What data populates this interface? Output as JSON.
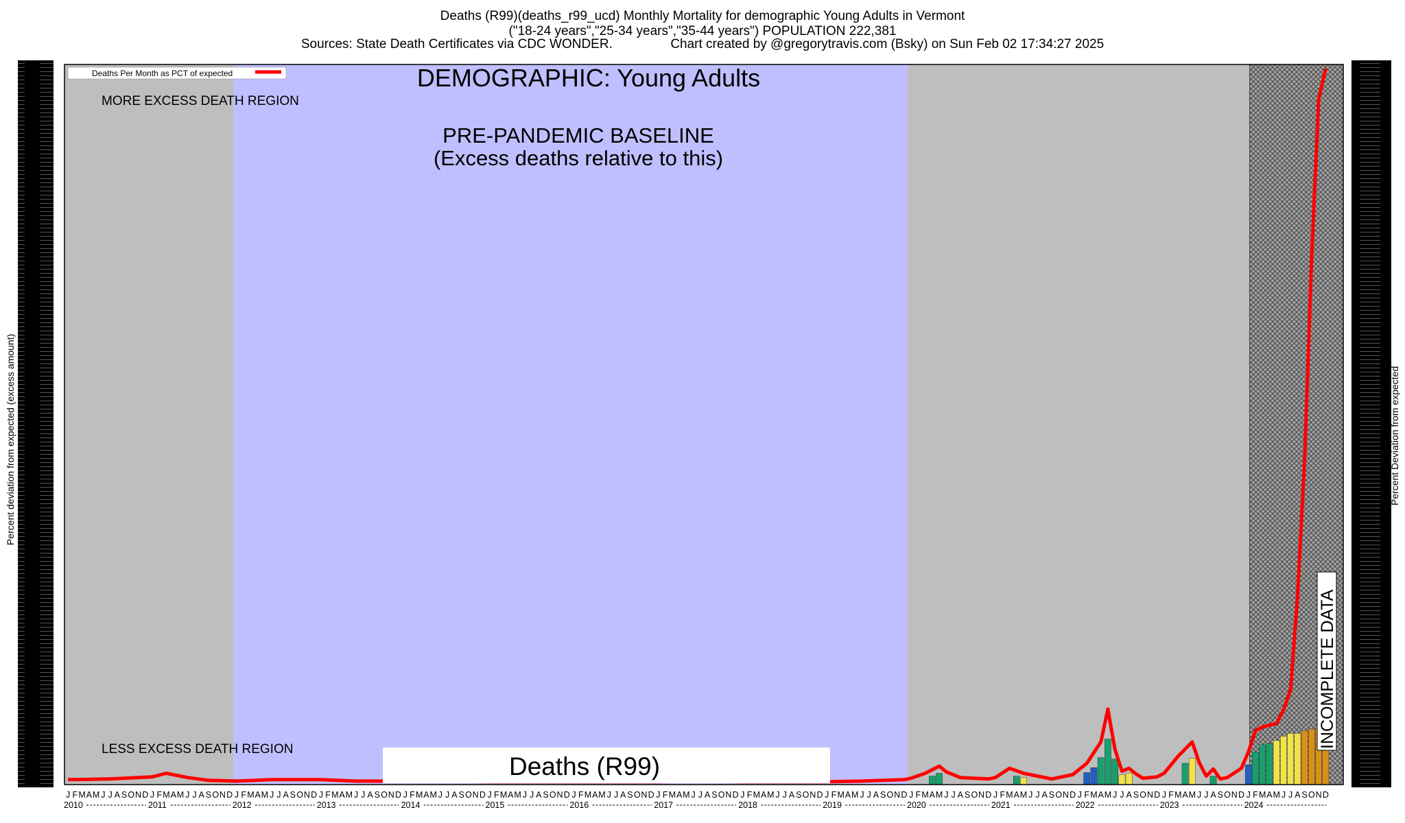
{
  "header": {
    "line1": "Deaths (R99)(deaths_r99_ucd) Monthly Mortality for demographic Young Adults in Vermont",
    "line2": "(\"18-24 years\",\"25-34 years\",\"35-44 years\") POPULATION 222,381",
    "line3": "Sources: State Death Certificates via CDC WONDER.                Chart created by @gregorytravis.com (Bsky) on Sun Feb 02 17:34:27 2025"
  },
  "colors": {
    "background": "#ffffff",
    "plot_grey": "#bebebe",
    "baseline_region": "#bfbfff",
    "deviation_line": "#ff0000",
    "bar_blue": "#1f5fbf",
    "bar_green": "#1a9e6e",
    "bar_yellow": "#f2e24a",
    "bar_orange": "#d9901a",
    "incomplete_hatch": "#a0a0a0"
  },
  "chart_data": {
    "type": "line",
    "title": "DEMOGRAPHIC: Young Adults",
    "bottom_label": "Deaths (R99)",
    "legend": {
      "label": "Deaths Per Month as PCT of expected",
      "position": "top-left"
    },
    "ylabel_left": "Percent deviation from expected (excess amount)",
    "ylabel_right": "Percent Deviation from expected",
    "annotations": {
      "more_excess": "MORE EXCESS DEATH REGION",
      "less_excess": "LESS EXCESS DEATH REGION",
      "baseline_line1": "PRE-PANDEMIC BASELINE",
      "baseline_line2": "(Excess deaths relative to this)",
      "incomplete": "INCOMPLETE DATA"
    },
    "x_start": "2010-01",
    "x_end": "2025-03",
    "month_letters": [
      "J",
      "F",
      "M",
      "A",
      "M",
      "J",
      "J",
      "A",
      "S",
      "O",
      "N",
      "D"
    ],
    "year_labels": [
      "2010",
      "2011",
      "2012",
      "2013",
      "2014",
      "2015",
      "2016",
      "2017",
      "2018",
      "2019",
      "2020",
      "2021",
      "2022",
      "2023",
      "2024"
    ],
    "baseline_period": [
      "2012-01",
      "2019-12"
    ],
    "incomplete_from": "2024-07",
    "ylim": [
      0,
      100
    ],
    "y_ticks_legible": false,
    "grid": false,
    "series": [
      {
        "name": "Deaths Per Month as PCT of expected",
        "color": "#ff0000",
        "points": [
          [
            "2010-01",
            0.5
          ],
          [
            "2010-07",
            0.6
          ],
          [
            "2011-01",
            0.9
          ],
          [
            "2011-03",
            1.4
          ],
          [
            "2011-06",
            0.8
          ],
          [
            "2011-09",
            0.4
          ],
          [
            "2012-01",
            0.3
          ],
          [
            "2012-06",
            0.5
          ],
          [
            "2013-01",
            0.5
          ],
          [
            "2013-06",
            0.3
          ],
          [
            "2014-01",
            0.3
          ],
          [
            "2014-06",
            0.3
          ],
          [
            "2015-01",
            0.2
          ],
          [
            "2015-06",
            0.2
          ],
          [
            "2016-01",
            0.2
          ],
          [
            "2016-06",
            0.2
          ],
          [
            "2017-01",
            0.2
          ],
          [
            "2017-06",
            0.3
          ],
          [
            "2018-01",
            0.2
          ],
          [
            "2018-06",
            0.2
          ],
          [
            "2019-01",
            0.2
          ],
          [
            "2019-06",
            0.3
          ],
          [
            "2019-12",
            0.5
          ],
          [
            "2020-01",
            0.7
          ],
          [
            "2020-03",
            1.4
          ],
          [
            "2020-05",
            2.4
          ],
          [
            "2020-06",
            1.6
          ],
          [
            "2020-08",
            0.8
          ],
          [
            "2020-12",
            0.6
          ],
          [
            "2021-01",
            0.8
          ],
          [
            "2021-03",
            2.1
          ],
          [
            "2021-05",
            1.4
          ],
          [
            "2021-06",
            1.2
          ],
          [
            "2021-09",
            0.6
          ],
          [
            "2021-12",
            1.2
          ],
          [
            "2022-02",
            2.8
          ],
          [
            "2022-04",
            5.8
          ],
          [
            "2022-05",
            10.4
          ],
          [
            "2022-06",
            4.8
          ],
          [
            "2022-07",
            1.7
          ],
          [
            "2022-08",
            2.1
          ],
          [
            "2022-09",
            1.3
          ],
          [
            "2022-10",
            0.7
          ],
          [
            "2022-12",
            0.9
          ],
          [
            "2023-01",
            1.4
          ],
          [
            "2023-03",
            3.8
          ],
          [
            "2023-05",
            5.8
          ],
          [
            "2023-06",
            2.9
          ],
          [
            "2023-07",
            1.0
          ],
          [
            "2023-08",
            2.0
          ],
          [
            "2023-09",
            0.6
          ],
          [
            "2023-10",
            0.8
          ],
          [
            "2023-12",
            2.1
          ],
          [
            "2024-01",
            4.4
          ],
          [
            "2024-02",
            7.4
          ],
          [
            "2024-03",
            7.9
          ],
          [
            "2024-05",
            8.4
          ],
          [
            "2024-06",
            10.3
          ],
          [
            "2024-07",
            13.1
          ],
          [
            "2024-08",
            26.3
          ],
          [
            "2024-09",
            45.5
          ],
          [
            "2024-10",
            73.8
          ],
          [
            "2024-11",
            96.1
          ],
          [
            "2024-12",
            100.4
          ]
        ]
      }
    ],
    "bars": [
      {
        "x": "2020-04",
        "value": 1.0,
        "color": "green"
      },
      {
        "x": "2020-05",
        "value": 1.4,
        "color": "green"
      },
      {
        "x": "2021-04",
        "value": 1.0,
        "color": "green"
      },
      {
        "x": "2021-05",
        "value": 0.8,
        "color": "yellow"
      },
      {
        "x": "2022-02",
        "value": 1.5,
        "color": "blue"
      },
      {
        "x": "2022-03",
        "value": 2.2,
        "color": "blue"
      },
      {
        "x": "2022-04",
        "value": 3.6,
        "color": "green"
      },
      {
        "x": "2022-05",
        "value": 6.2,
        "color": "green"
      },
      {
        "x": "2022-06",
        "value": 3.4,
        "color": "green"
      },
      {
        "x": "2022-07",
        "value": 1.2,
        "color": "yellow"
      },
      {
        "x": "2022-08",
        "value": 1.4,
        "color": "yellow"
      },
      {
        "x": "2023-04",
        "value": 2.8,
        "color": "green"
      },
      {
        "x": "2023-05",
        "value": 3.5,
        "color": "yellow"
      },
      {
        "x": "2023-08",
        "value": 1.0,
        "color": "green"
      },
      {
        "x": "2024-01",
        "value": 2.6,
        "color": "blue"
      },
      {
        "x": "2024-02",
        "value": 4.4,
        "color": "green"
      },
      {
        "x": "2024-03",
        "value": 5.4,
        "color": "green"
      },
      {
        "x": "2024-04",
        "value": 5.6,
        "color": "green"
      },
      {
        "x": "2024-05",
        "value": 6.0,
        "color": "yellow"
      },
      {
        "x": "2024-06",
        "value": 6.6,
        "color": "yellow"
      },
      {
        "x": "2024-07",
        "value": 7.0,
        "color": "yellow"
      },
      {
        "x": "2024-08",
        "value": 7.0,
        "color": "yellow"
      },
      {
        "x": "2024-09",
        "value": 7.4,
        "color": "orange"
      },
      {
        "x": "2024-10",
        "value": 7.6,
        "color": "orange"
      },
      {
        "x": "2024-11",
        "value": 7.8,
        "color": "orange"
      },
      {
        "x": "2024-12",
        "value": 7.8,
        "color": "orange"
      }
    ]
  }
}
